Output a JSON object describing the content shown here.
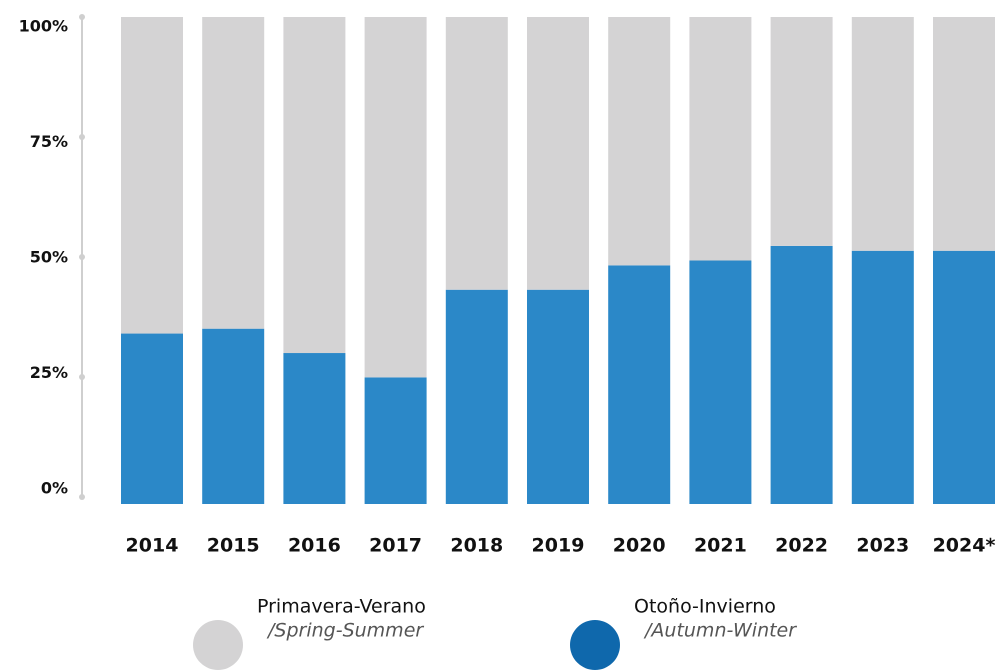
{
  "chart_data": {
    "type": "stacked_bar",
    "categories": [
      "2014",
      "2015",
      "2016",
      "2017",
      "2018",
      "2019",
      "2020",
      "2021",
      "2022",
      "2023",
      "2024*"
    ],
    "series": [
      {
        "name": "Otoño-Invierno",
        "subtitle": "/Autumn-Winter",
        "color": "#2b88c8",
        "values": [
          35,
          36,
          31,
          26,
          44,
          44,
          49,
          50,
          53,
          52,
          52
        ]
      },
      {
        "name": "Primavera-Verano",
        "subtitle": "/Spring-Summer",
        "color": "#d4d3d4",
        "values": [
          65,
          64,
          69,
          74,
          56,
          56,
          51,
          50,
          47,
          48,
          48
        ]
      }
    ],
    "legend_colors": [
      "#d4d3d4",
      "#0f68ac"
    ],
    "ylim": [
      0,
      100
    ],
    "yticks": [
      {
        "value": 0,
        "label": "0%"
      },
      {
        "value": 25,
        "label": "25%"
      },
      {
        "value": 50,
        "label": "50%"
      },
      {
        "value": 75,
        "label": "75%"
      },
      {
        "value": 100,
        "label": "100%"
      }
    ]
  }
}
